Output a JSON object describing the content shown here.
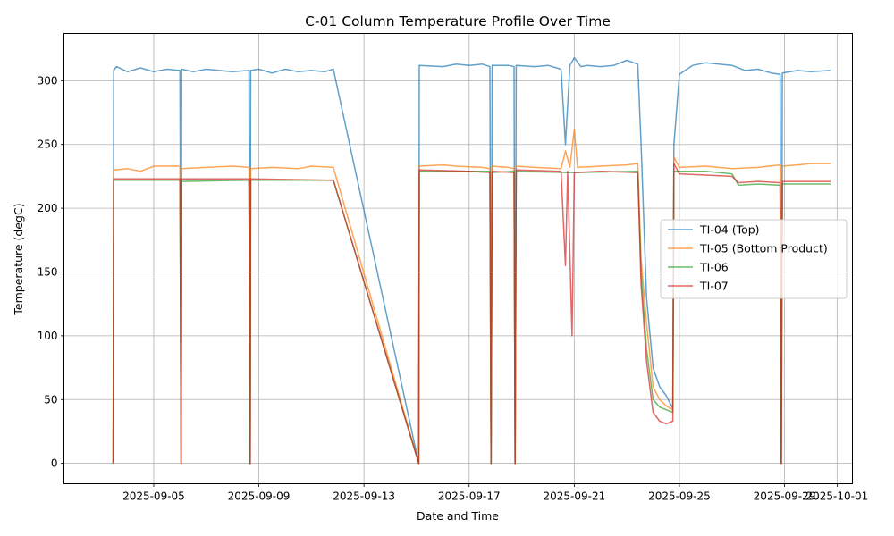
{
  "chart_data": {
    "type": "line",
    "title": "C-01 Column Temperature Profile Over Time",
    "xlabel": "Date and Time",
    "ylabel": "Temperature (degC)",
    "xlim": [
      "2025-09-01T14:00",
      "2025-10-01T14:00"
    ],
    "ylim": [
      -16,
      337
    ],
    "yticks": [
      0,
      50,
      100,
      150,
      200,
      250,
      300
    ],
    "xticks": [
      "2025-09-05",
      "2025-09-09",
      "2025-09-13",
      "2025-09-17",
      "2025-09-21",
      "2025-09-25",
      "2025-09-29",
      "2025-10-01"
    ],
    "grid": true,
    "legend_position": "center-right",
    "series": [
      {
        "name": "TI-04 (Top)",
        "color": "#1f77b4",
        "points": [
          [
            "2025-09-03T11:00",
            0
          ],
          [
            "2025-09-03T11:30",
            308
          ],
          [
            "2025-09-03T14:00",
            311
          ],
          [
            "2025-09-04T00:00",
            307
          ],
          [
            "2025-09-04T12:00",
            310
          ],
          [
            "2025-09-05T00:00",
            307
          ],
          [
            "2025-09-05T12:00",
            309
          ],
          [
            "2025-09-06T00:00",
            308
          ],
          [
            "2025-09-06T01:00",
            0
          ],
          [
            "2025-09-06T01:30",
            309
          ],
          [
            "2025-09-06T12:00",
            307
          ],
          [
            "2025-09-07T00:00",
            309
          ],
          [
            "2025-09-07T12:00",
            308
          ],
          [
            "2025-09-08T00:00",
            307
          ],
          [
            "2025-09-08T15:00",
            308
          ],
          [
            "2025-09-08T16:00",
            0
          ],
          [
            "2025-09-08T16:30",
            308
          ],
          [
            "2025-09-09T00:00",
            309
          ],
          [
            "2025-09-09T12:00",
            306
          ],
          [
            "2025-09-10T00:00",
            309
          ],
          [
            "2025-09-10T12:00",
            307
          ],
          [
            "2025-09-11T00:00",
            308
          ],
          [
            "2025-09-11T12:00",
            307
          ],
          [
            "2025-09-11T20:00",
            309
          ],
          [
            "2025-09-15T02:00",
            0
          ],
          [
            "2025-09-15T02:30",
            312
          ],
          [
            "2025-09-16T00:00",
            311
          ],
          [
            "2025-09-16T12:00",
            313
          ],
          [
            "2025-09-17T00:00",
            312
          ],
          [
            "2025-09-17T12:00",
            313
          ],
          [
            "2025-09-17T19:00",
            311
          ],
          [
            "2025-09-17T20:00",
            0
          ],
          [
            "2025-09-17T21:00",
            312
          ],
          [
            "2025-09-18T12:00",
            312
          ],
          [
            "2025-09-18T17:00",
            311
          ],
          [
            "2025-09-18T18:00",
            0
          ],
          [
            "2025-09-18T19:00",
            312
          ],
          [
            "2025-09-19T12:00",
            311
          ],
          [
            "2025-09-20T00:00",
            312
          ],
          [
            "2025-09-20T12:00",
            309
          ],
          [
            "2025-09-20T16:00",
            250
          ],
          [
            "2025-09-20T20:00",
            312
          ],
          [
            "2025-09-21T00:00",
            318
          ],
          [
            "2025-09-21T06:00",
            311
          ],
          [
            "2025-09-21T12:00",
            312
          ],
          [
            "2025-09-22T00:00",
            311
          ],
          [
            "2025-09-22T12:00",
            312
          ],
          [
            "2025-09-23T00:00",
            316
          ],
          [
            "2025-09-23T10:00",
            313
          ],
          [
            "2025-09-23T13:00",
            250
          ],
          [
            "2025-09-23T18:00",
            130
          ],
          [
            "2025-09-24T00:00",
            75
          ],
          [
            "2025-09-24T06:00",
            60
          ],
          [
            "2025-09-24T12:00",
            53
          ],
          [
            "2025-09-24T18:00",
            43
          ],
          [
            "2025-09-24T19:00",
            250
          ],
          [
            "2025-09-25T00:00",
            305
          ],
          [
            "2025-09-25T12:00",
            312
          ],
          [
            "2025-09-26T00:00",
            314
          ],
          [
            "2025-09-26T12:00",
            313
          ],
          [
            "2025-09-27T00:00",
            312
          ],
          [
            "2025-09-27T12:00",
            308
          ],
          [
            "2025-09-28T00:00",
            309
          ],
          [
            "2025-09-28T12:00",
            306
          ],
          [
            "2025-09-28T20:00",
            305
          ],
          [
            "2025-09-28T21:00",
            0
          ],
          [
            "2025-09-28T22:00",
            306
          ],
          [
            "2025-09-29T12:00",
            308
          ],
          [
            "2025-09-30T00:00",
            307
          ],
          [
            "2025-09-30T18:00",
            308
          ]
        ]
      },
      {
        "name": "TI-05 (Bottom Product)",
        "color": "#ff7f0e",
        "points": [
          [
            "2025-09-03T11:00",
            0
          ],
          [
            "2025-09-03T11:30",
            230
          ],
          [
            "2025-09-04T00:00",
            231
          ],
          [
            "2025-09-04T12:00",
            229
          ],
          [
            "2025-09-05T00:00",
            233
          ],
          [
            "2025-09-06T00:00",
            233
          ],
          [
            "2025-09-06T01:00",
            0
          ],
          [
            "2025-09-06T01:30",
            231
          ],
          [
            "2025-09-07T00:00",
            232
          ],
          [
            "2025-09-08T00:00",
            233
          ],
          [
            "2025-09-08T15:00",
            232
          ],
          [
            "2025-09-08T16:00",
            0
          ],
          [
            "2025-09-08T16:30",
            231
          ],
          [
            "2025-09-09T12:00",
            232
          ],
          [
            "2025-09-10T12:00",
            231
          ],
          [
            "2025-09-11T00:00",
            233
          ],
          [
            "2025-09-11T20:00",
            232
          ],
          [
            "2025-09-15T02:00",
            0
          ],
          [
            "2025-09-15T02:30",
            233
          ],
          [
            "2025-09-16T00:00",
            234
          ],
          [
            "2025-09-16T12:00",
            233
          ],
          [
            "2025-09-17T12:00",
            232
          ],
          [
            "2025-09-17T19:00",
            231
          ],
          [
            "2025-09-17T20:00",
            0
          ],
          [
            "2025-09-17T21:00",
            233
          ],
          [
            "2025-09-18T12:00",
            232
          ],
          [
            "2025-09-18T17:00",
            231
          ],
          [
            "2025-09-18T18:00",
            0
          ],
          [
            "2025-09-18T19:00",
            233
          ],
          [
            "2025-09-19T12:00",
            232
          ],
          [
            "2025-09-20T12:00",
            231
          ],
          [
            "2025-09-20T16:00",
            245
          ],
          [
            "2025-09-20T20:00",
            232
          ],
          [
            "2025-09-21T00:00",
            262
          ],
          [
            "2025-09-21T03:00",
            232
          ],
          [
            "2025-09-22T00:00",
            233
          ],
          [
            "2025-09-23T00:00",
            234
          ],
          [
            "2025-09-23T10:00",
            235
          ],
          [
            "2025-09-23T13:00",
            160
          ],
          [
            "2025-09-23T18:00",
            110
          ],
          [
            "2025-09-24T00:00",
            60
          ],
          [
            "2025-09-24T06:00",
            50
          ],
          [
            "2025-09-24T12:00",
            45
          ],
          [
            "2025-09-24T18:00",
            42
          ],
          [
            "2025-09-24T19:00",
            240
          ],
          [
            "2025-09-25T00:00",
            232
          ],
          [
            "2025-09-26T00:00",
            233
          ],
          [
            "2025-09-27T00:00",
            231
          ],
          [
            "2025-09-28T00:00",
            232
          ],
          [
            "2025-09-28T20:00",
            234
          ],
          [
            "2025-09-28T21:00",
            0
          ],
          [
            "2025-09-28T22:00",
            233
          ],
          [
            "2025-09-29T12:00",
            234
          ],
          [
            "2025-09-30T00:00",
            235
          ],
          [
            "2025-09-30T18:00",
            235
          ]
        ]
      },
      {
        "name": "TI-06",
        "color": "#2ca02c",
        "points": [
          [
            "2025-09-03T11:00",
            0
          ],
          [
            "2025-09-03T11:30",
            222
          ],
          [
            "2025-09-05T00:00",
            222
          ],
          [
            "2025-09-06T00:00",
            222
          ],
          [
            "2025-09-06T01:00",
            0
          ],
          [
            "2025-09-06T01:30",
            221
          ],
          [
            "2025-09-08T15:00",
            222
          ],
          [
            "2025-09-08T16:00",
            0
          ],
          [
            "2025-09-08T16:30",
            222
          ],
          [
            "2025-09-11T20:00",
            222
          ],
          [
            "2025-09-15T02:00",
            0
          ],
          [
            "2025-09-15T02:30",
            229
          ],
          [
            "2025-09-17T19:00",
            229
          ],
          [
            "2025-09-17T20:00",
            0
          ],
          [
            "2025-09-17T21:00",
            228
          ],
          [
            "2025-09-18T17:00",
            229
          ],
          [
            "2025-09-18T18:00",
            0
          ],
          [
            "2025-09-18T19:00",
            229
          ],
          [
            "2025-09-20T16:00",
            228
          ],
          [
            "2025-09-21T00:00",
            228
          ],
          [
            "2025-09-23T10:00",
            229
          ],
          [
            "2025-09-23T13:00",
            150
          ],
          [
            "2025-09-23T18:00",
            90
          ],
          [
            "2025-09-24T00:00",
            50
          ],
          [
            "2025-09-24T06:00",
            44
          ],
          [
            "2025-09-24T12:00",
            42
          ],
          [
            "2025-09-24T18:00",
            40
          ],
          [
            "2025-09-24T19:00",
            229
          ],
          [
            "2025-09-26T00:00",
            229
          ],
          [
            "2025-09-27T00:00",
            227
          ],
          [
            "2025-09-27T06:00",
            218
          ],
          [
            "2025-09-28T00:00",
            219
          ],
          [
            "2025-09-28T20:00",
            218
          ],
          [
            "2025-09-28T21:00",
            0
          ],
          [
            "2025-09-28T22:00",
            219
          ],
          [
            "2025-09-30T18:00",
            219
          ]
        ]
      },
      {
        "name": "TI-07",
        "color": "#d62728",
        "points": [
          [
            "2025-09-03T11:00",
            0
          ],
          [
            "2025-09-03T11:30",
            223
          ],
          [
            "2025-09-05T00:00",
            223
          ],
          [
            "2025-09-06T00:00",
            223
          ],
          [
            "2025-09-06T01:00",
            0
          ],
          [
            "2025-09-06T01:30",
            223
          ],
          [
            "2025-09-08T15:00",
            223
          ],
          [
            "2025-09-08T16:00",
            0
          ],
          [
            "2025-09-08T16:30",
            223
          ],
          [
            "2025-09-11T20:00",
            222
          ],
          [
            "2025-09-15T02:00",
            0
          ],
          [
            "2025-09-15T02:30",
            230
          ],
          [
            "2025-09-17T00:00",
            229
          ],
          [
            "2025-09-17T19:00",
            228
          ],
          [
            "2025-09-17T20:00",
            0
          ],
          [
            "2025-09-17T21:00",
            229
          ],
          [
            "2025-09-18T17:00",
            228
          ],
          [
            "2025-09-18T18:00",
            0
          ],
          [
            "2025-09-18T19:00",
            230
          ],
          [
            "2025-09-20T12:00",
            229
          ],
          [
            "2025-09-20T16:00",
            155
          ],
          [
            "2025-09-20T18:00",
            229
          ],
          [
            "2025-09-20T22:00",
            100
          ],
          [
            "2025-09-21T00:00",
            228
          ],
          [
            "2025-09-22T00:00",
            229
          ],
          [
            "2025-09-23T10:00",
            228
          ],
          [
            "2025-09-23T13:00",
            140
          ],
          [
            "2025-09-23T18:00",
            80
          ],
          [
            "2025-09-24T00:00",
            40
          ],
          [
            "2025-09-24T06:00",
            33
          ],
          [
            "2025-09-24T12:00",
            31
          ],
          [
            "2025-09-24T18:00",
            33
          ],
          [
            "2025-09-24T19:00",
            235
          ],
          [
            "2025-09-25T00:00",
            227
          ],
          [
            "2025-09-26T00:00",
            226
          ],
          [
            "2025-09-27T00:00",
            225
          ],
          [
            "2025-09-27T06:00",
            220
          ],
          [
            "2025-09-28T00:00",
            221
          ],
          [
            "2025-09-28T20:00",
            220
          ],
          [
            "2025-09-28T21:00",
            0
          ],
          [
            "2025-09-28T22:00",
            221
          ],
          [
            "2025-09-30T18:00",
            221
          ]
        ]
      }
    ]
  }
}
